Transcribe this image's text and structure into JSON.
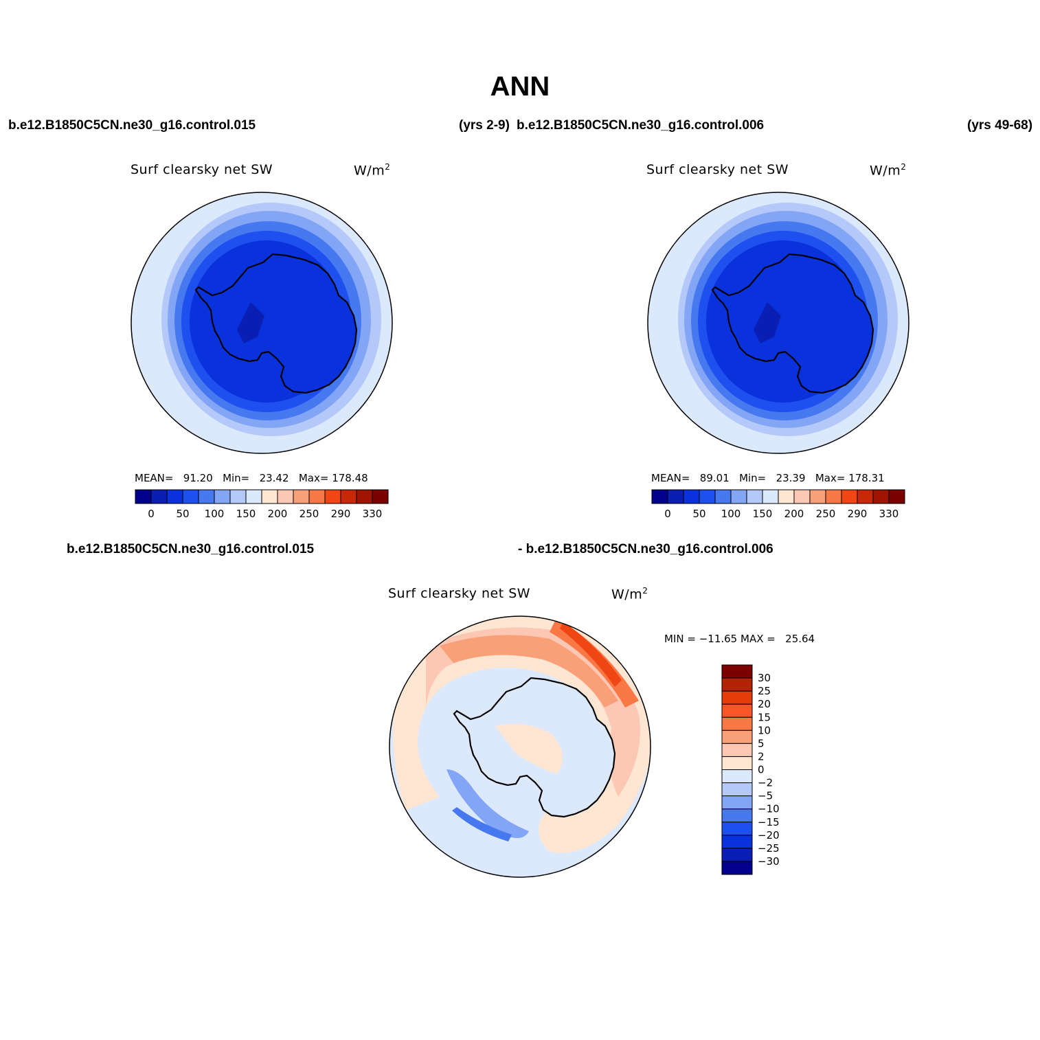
{
  "header": {
    "title": "ANN",
    "case_left": "b.e12.B1850C5CN.ne30_g16.control.015",
    "yrs_left": "(yrs 2-9)",
    "case_right": "b.e12.B1850C5CN.ne30_g16.control.006",
    "yrs_right": "(yrs 49-68)",
    "diff_left": "b.e12.B1850C5CN.ne30_g16.control.015",
    "diff_right": "- b.e12.B1850C5CN.ne30_g16.control.006"
  },
  "panels": [
    {
      "variable": "Surf clearsky net SW",
      "units": "W/m",
      "units_sup": "2",
      "stats": {
        "mean_label": "MEAN=",
        "mean": "91.20",
        "min_label": "Min=",
        "min": "23.42",
        "max_label": "Max=",
        "max": "178.48"
      }
    },
    {
      "variable": "Surf clearsky net SW",
      "units": "W/m",
      "units_sup": "2",
      "stats": {
        "mean_label": "MEAN=",
        "mean": "89.01",
        "min_label": "Min=",
        "min": "23.39",
        "max_label": "Max=",
        "max": "178.31"
      }
    },
    {
      "variable": "Surf clearsky net SW",
      "units": "W/m",
      "units_sup": "2",
      "stats": {
        "min_label": "MIN =",
        "min": "−11.65",
        "max_label": "MAX =",
        "max": "25.64"
      }
    }
  ],
  "colorbar_abs": {
    "colors": [
      "#00008c",
      "#0a1eb4",
      "#0a32dc",
      "#1e50f0",
      "#4678f0",
      "#82a5f5",
      "#b4c8fa",
      "#dce9fd",
      "#ffe6d2",
      "#fcc8b4",
      "#faa078",
      "#fa7846",
      "#f04614",
      "#c82808",
      "#a01400",
      "#7d0000"
    ],
    "labels": [
      "0",
      "50",
      "100",
      "150",
      "200",
      "250",
      "290",
      "330"
    ]
  },
  "colorbar_diff": {
    "colors": [
      "#7d0000",
      "#b42305",
      "#e63c0a",
      "#fa5528",
      "#fa7846",
      "#faa078",
      "#fcc8b4",
      "#ffe6d2",
      "#dce9fd",
      "#b4c8fa",
      "#82a5f5",
      "#4678f0",
      "#1e50f0",
      "#0a32dc",
      "#0a1eb4",
      "#00008c"
    ],
    "labels": [
      "30",
      "25",
      "20",
      "15",
      "10",
      "5",
      "2",
      "0",
      "−2",
      "−5",
      "−10",
      "−15",
      "−20",
      "−25",
      "−30"
    ]
  }
}
